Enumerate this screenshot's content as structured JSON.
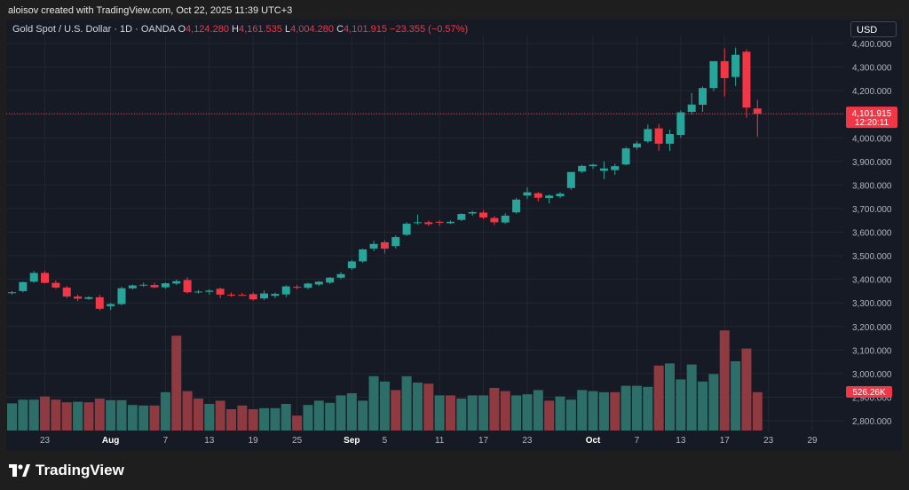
{
  "credit": "aloisov created with TradingView.com, Oct 22, 2025 11:39 UTC+3",
  "legend": {
    "symbol": "Gold Spot / U.S. Dollar · 1D · OANDA",
    "o_label": "O",
    "o_value": "4,124.280",
    "h_label": "H",
    "h_value": "4,161.535",
    "l_label": "L",
    "l_value": "4,004.280",
    "c_label": "C",
    "c_value": "4,101.915",
    "change": "−23.355 (−0.57%)"
  },
  "currency": "USD",
  "price_label": {
    "value": "4,101.915",
    "countdown": "12:20:11"
  },
  "volume_label": "526.26K",
  "brand": "TradingView",
  "colors": {
    "up": "#26a69a",
    "down": "#f23645",
    "vol_up": "#2d6e69",
    "vol_down": "#8e3a40",
    "background": "#161a25",
    "grid": "#232732"
  },
  "chart_data": {
    "type": "candlestick",
    "title": "Gold Spot / U.S. Dollar · 1D · OANDA",
    "y_axis": {
      "ticks": [
        2800,
        2900,
        3000,
        3100,
        3200,
        3300,
        3400,
        3500,
        3600,
        3700,
        3800,
        3900,
        4000,
        4100,
        4200,
        4300,
        4400
      ],
      "tick_labels": [
        "2,800.000",
        "2,900.000",
        "3,000.000",
        "3,100.000",
        "3,200.000",
        "3,300.000",
        "3,400.000",
        "3,500.000",
        "3,600.000",
        "3,700.000",
        "3,800.000",
        "3,900.000",
        "4,000.000",
        "4,100.000",
        "4,200.000",
        "4,300.000",
        "4,400.000"
      ],
      "range": [
        2755,
        4415
      ],
      "position": "right"
    },
    "x_axis": {
      "ticks": [
        {
          "index": 3,
          "label": "23",
          "bold": false
        },
        {
          "index": 9,
          "label": "Aug",
          "bold": true
        },
        {
          "index": 14,
          "label": "7",
          "bold": false
        },
        {
          "index": 18,
          "label": "13",
          "bold": false
        },
        {
          "index": 22,
          "label": "19",
          "bold": false
        },
        {
          "index": 26,
          "label": "25",
          "bold": false
        },
        {
          "index": 31,
          "label": "Sep",
          "bold": true
        },
        {
          "index": 34,
          "label": "5",
          "bold": false
        },
        {
          "index": 39,
          "label": "11",
          "bold": false
        },
        {
          "index": 43,
          "label": "17",
          "bold": false
        },
        {
          "index": 47,
          "label": "23",
          "bold": false
        },
        {
          "index": 53,
          "label": "Oct",
          "bold": true
        },
        {
          "index": 57,
          "label": "7",
          "bold": false
        },
        {
          "index": 61,
          "label": "13",
          "bold": false
        },
        {
          "index": 65,
          "label": "17",
          "bold": false
        },
        {
          "index": 69,
          "label": "23",
          "bold": false
        },
        {
          "index": 73,
          "label": "29",
          "bold": false
        }
      ]
    },
    "last_price": 4101.915,
    "candles": [
      {
        "o": 3343,
        "h": 3350,
        "l": 3335,
        "c": 3345
      },
      {
        "o": 3350,
        "h": 3390,
        "l": 3345,
        "c": 3388
      },
      {
        "o": 3390,
        "h": 3435,
        "l": 3385,
        "c": 3427
      },
      {
        "o": 3427,
        "h": 3435,
        "l": 3383,
        "c": 3385
      },
      {
        "o": 3385,
        "h": 3395,
        "l": 3360,
        "c": 3365
      },
      {
        "o": 3365,
        "h": 3372,
        "l": 3320,
        "c": 3327
      },
      {
        "o": 3327,
        "h": 3335,
        "l": 3308,
        "c": 3318
      },
      {
        "o": 3317,
        "h": 3328,
        "l": 3313,
        "c": 3324
      },
      {
        "o": 3324,
        "h": 3334,
        "l": 3268,
        "c": 3275
      },
      {
        "o": 3286,
        "h": 3300,
        "l": 3270,
        "c": 3295
      },
      {
        "o": 3295,
        "h": 3368,
        "l": 3290,
        "c": 3362
      },
      {
        "o": 3362,
        "h": 3378,
        "l": 3357,
        "c": 3374
      },
      {
        "o": 3374,
        "h": 3386,
        "l": 3368,
        "c": 3377
      },
      {
        "o": 3376,
        "h": 3386,
        "l": 3362,
        "c": 3366
      },
      {
        "o": 3366,
        "h": 3386,
        "l": 3360,
        "c": 3383
      },
      {
        "o": 3382,
        "h": 3399,
        "l": 3376,
        "c": 3392
      },
      {
        "o": 3397,
        "h": 3409,
        "l": 3340,
        "c": 3345
      },
      {
        "o": 3345,
        "h": 3355,
        "l": 3340,
        "c": 3348
      },
      {
        "o": 3347,
        "h": 3358,
        "l": 3335,
        "c": 3352
      },
      {
        "o": 3360,
        "h": 3365,
        "l": 3320,
        "c": 3335
      },
      {
        "o": 3335,
        "h": 3344,
        "l": 3326,
        "c": 3334
      },
      {
        "o": 3334,
        "h": 3342,
        "l": 3329,
        "c": 3331
      },
      {
        "o": 3337,
        "h": 3345,
        "l": 3310,
        "c": 3315
      },
      {
        "o": 3319,
        "h": 3352,
        "l": 3312,
        "c": 3340
      },
      {
        "o": 3330,
        "h": 3344,
        "l": 3320,
        "c": 3338
      },
      {
        "o": 3336,
        "h": 3375,
        "l": 3325,
        "c": 3370
      },
      {
        "o": 3368,
        "h": 3376,
        "l": 3357,
        "c": 3365
      },
      {
        "o": 3364,
        "h": 3386,
        "l": 3358,
        "c": 3382
      },
      {
        "o": 3378,
        "h": 3392,
        "l": 3372,
        "c": 3390
      },
      {
        "o": 3386,
        "h": 3410,
        "l": 3380,
        "c": 3407
      },
      {
        "o": 3407,
        "h": 3430,
        "l": 3401,
        "c": 3422
      },
      {
        "o": 3447,
        "h": 3482,
        "l": 3440,
        "c": 3476
      },
      {
        "o": 3476,
        "h": 3530,
        "l": 3470,
        "c": 3527
      },
      {
        "o": 3530,
        "h": 3563,
        "l": 3520,
        "c": 3550
      },
      {
        "o": 3557,
        "h": 3565,
        "l": 3510,
        "c": 3530
      },
      {
        "o": 3541,
        "h": 3586,
        "l": 3531,
        "c": 3579
      },
      {
        "o": 3589,
        "h": 3642,
        "l": 3584,
        "c": 3636
      },
      {
        "o": 3640,
        "h": 3674,
        "l": 3632,
        "c": 3642
      },
      {
        "o": 3642,
        "h": 3649,
        "l": 3626,
        "c": 3634
      },
      {
        "o": 3644,
        "h": 3650,
        "l": 3626,
        "c": 3640
      },
      {
        "o": 3638,
        "h": 3650,
        "l": 3634,
        "c": 3644
      },
      {
        "o": 3652,
        "h": 3680,
        "l": 3647,
        "c": 3677
      },
      {
        "o": 3679,
        "h": 3690,
        "l": 3670,
        "c": 3685
      },
      {
        "o": 3683,
        "h": 3694,
        "l": 3655,
        "c": 3662
      },
      {
        "o": 3660,
        "h": 3667,
        "l": 3630,
        "c": 3642
      },
      {
        "o": 3641,
        "h": 3680,
        "l": 3635,
        "c": 3670
      },
      {
        "o": 3684,
        "h": 3745,
        "l": 3678,
        "c": 3738
      },
      {
        "o": 3755,
        "h": 3790,
        "l": 3740,
        "c": 3769
      },
      {
        "o": 3765,
        "h": 3770,
        "l": 3730,
        "c": 3746
      },
      {
        "o": 3745,
        "h": 3760,
        "l": 3722,
        "c": 3755
      },
      {
        "o": 3752,
        "h": 3770,
        "l": 3744,
        "c": 3763
      },
      {
        "o": 3787,
        "h": 3850,
        "l": 3780,
        "c": 3855
      },
      {
        "o": 3857,
        "h": 3886,
        "l": 3850,
        "c": 3881
      },
      {
        "o": 3880,
        "h": 3890,
        "l": 3868,
        "c": 3886
      },
      {
        "o": 3860,
        "h": 3900,
        "l": 3825,
        "c": 3870
      },
      {
        "o": 3863,
        "h": 3890,
        "l": 3843,
        "c": 3880
      },
      {
        "o": 3887,
        "h": 3962,
        "l": 3883,
        "c": 3955
      },
      {
        "o": 3959,
        "h": 3985,
        "l": 3950,
        "c": 3976
      },
      {
        "o": 3985,
        "h": 4056,
        "l": 3978,
        "c": 4037
      },
      {
        "o": 4040,
        "h": 4059,
        "l": 3945,
        "c": 3975
      },
      {
        "o": 3975,
        "h": 4035,
        "l": 3944,
        "c": 4016
      },
      {
        "o": 4012,
        "h": 4116,
        "l": 4000,
        "c": 4108
      },
      {
        "o": 4110,
        "h": 4190,
        "l": 4100,
        "c": 4141
      },
      {
        "o": 4140,
        "h": 4218,
        "l": 4110,
        "c": 4211
      },
      {
        "o": 4211,
        "h": 4320,
        "l": 4198,
        "c": 4325
      },
      {
        "o": 4325,
        "h": 4380,
        "l": 4175,
        "c": 4253
      },
      {
        "o": 4258,
        "h": 4382,
        "l": 4220,
        "c": 4352
      },
      {
        "o": 4365,
        "h": 4375,
        "l": 4085,
        "c": 4128
      },
      {
        "o": 4124.28,
        "h": 4161.535,
        "l": 4004.28,
        "c": 4101.915
      }
    ],
    "volume": [
      {
        "v": 0.255,
        "up": true
      },
      {
        "v": 0.29,
        "up": true
      },
      {
        "v": 0.29,
        "up": true
      },
      {
        "v": 0.32,
        "up": false
      },
      {
        "v": 0.29,
        "up": false
      },
      {
        "v": 0.265,
        "up": false
      },
      {
        "v": 0.27,
        "up": true
      },
      {
        "v": 0.265,
        "up": false
      },
      {
        "v": 0.3,
        "up": false
      },
      {
        "v": 0.285,
        "up": true
      },
      {
        "v": 0.285,
        "up": true
      },
      {
        "v": 0.24,
        "up": true
      },
      {
        "v": 0.235,
        "up": true
      },
      {
        "v": 0.235,
        "up": false
      },
      {
        "v": 0.36,
        "up": true
      },
      {
        "v": 0.89,
        "up": false
      },
      {
        "v": 0.37,
        "up": false
      },
      {
        "v": 0.3,
        "up": false
      },
      {
        "v": 0.25,
        "up": true
      },
      {
        "v": 0.28,
        "up": false
      },
      {
        "v": 0.2,
        "up": false
      },
      {
        "v": 0.235,
        "up": false
      },
      {
        "v": 0.2,
        "up": false
      },
      {
        "v": 0.21,
        "up": true
      },
      {
        "v": 0.21,
        "up": true
      },
      {
        "v": 0.25,
        "up": true
      },
      {
        "v": 0.14,
        "up": false
      },
      {
        "v": 0.24,
        "up": true
      },
      {
        "v": 0.28,
        "up": true
      },
      {
        "v": 0.26,
        "up": true
      },
      {
        "v": 0.33,
        "up": true
      },
      {
        "v": 0.35,
        "up": true
      },
      {
        "v": 0.28,
        "up": true
      },
      {
        "v": 0.51,
        "up": true
      },
      {
        "v": 0.46,
        "up": true
      },
      {
        "v": 0.38,
        "up": false
      },
      {
        "v": 0.51,
        "up": true
      },
      {
        "v": 0.45,
        "up": true
      },
      {
        "v": 0.44,
        "up": false
      },
      {
        "v": 0.33,
        "up": true
      },
      {
        "v": 0.33,
        "up": false
      },
      {
        "v": 0.3,
        "up": true
      },
      {
        "v": 0.33,
        "up": true
      },
      {
        "v": 0.33,
        "up": true
      },
      {
        "v": 0.4,
        "up": false
      },
      {
        "v": 0.37,
        "up": false
      },
      {
        "v": 0.33,
        "up": true
      },
      {
        "v": 0.34,
        "up": true
      },
      {
        "v": 0.38,
        "up": true
      },
      {
        "v": 0.28,
        "up": false
      },
      {
        "v": 0.32,
        "up": true
      },
      {
        "v": 0.29,
        "up": true
      },
      {
        "v": 0.38,
        "up": true
      },
      {
        "v": 0.37,
        "up": true
      },
      {
        "v": 0.36,
        "up": true
      },
      {
        "v": 0.36,
        "up": false
      },
      {
        "v": 0.42,
        "up": true
      },
      {
        "v": 0.42,
        "up": true
      },
      {
        "v": 0.41,
        "up": true
      },
      {
        "v": 0.61,
        "up": false
      },
      {
        "v": 0.63,
        "up": true
      },
      {
        "v": 0.48,
        "up": true
      },
      {
        "v": 0.62,
        "up": true
      },
      {
        "v": 0.46,
        "up": true
      },
      {
        "v": 0.53,
        "up": true
      },
      {
        "v": 0.94,
        "up": false
      },
      {
        "v": 0.65,
        "up": true
      },
      {
        "v": 0.77,
        "up": false
      },
      {
        "v": 0.36,
        "up": false
      }
    ]
  }
}
